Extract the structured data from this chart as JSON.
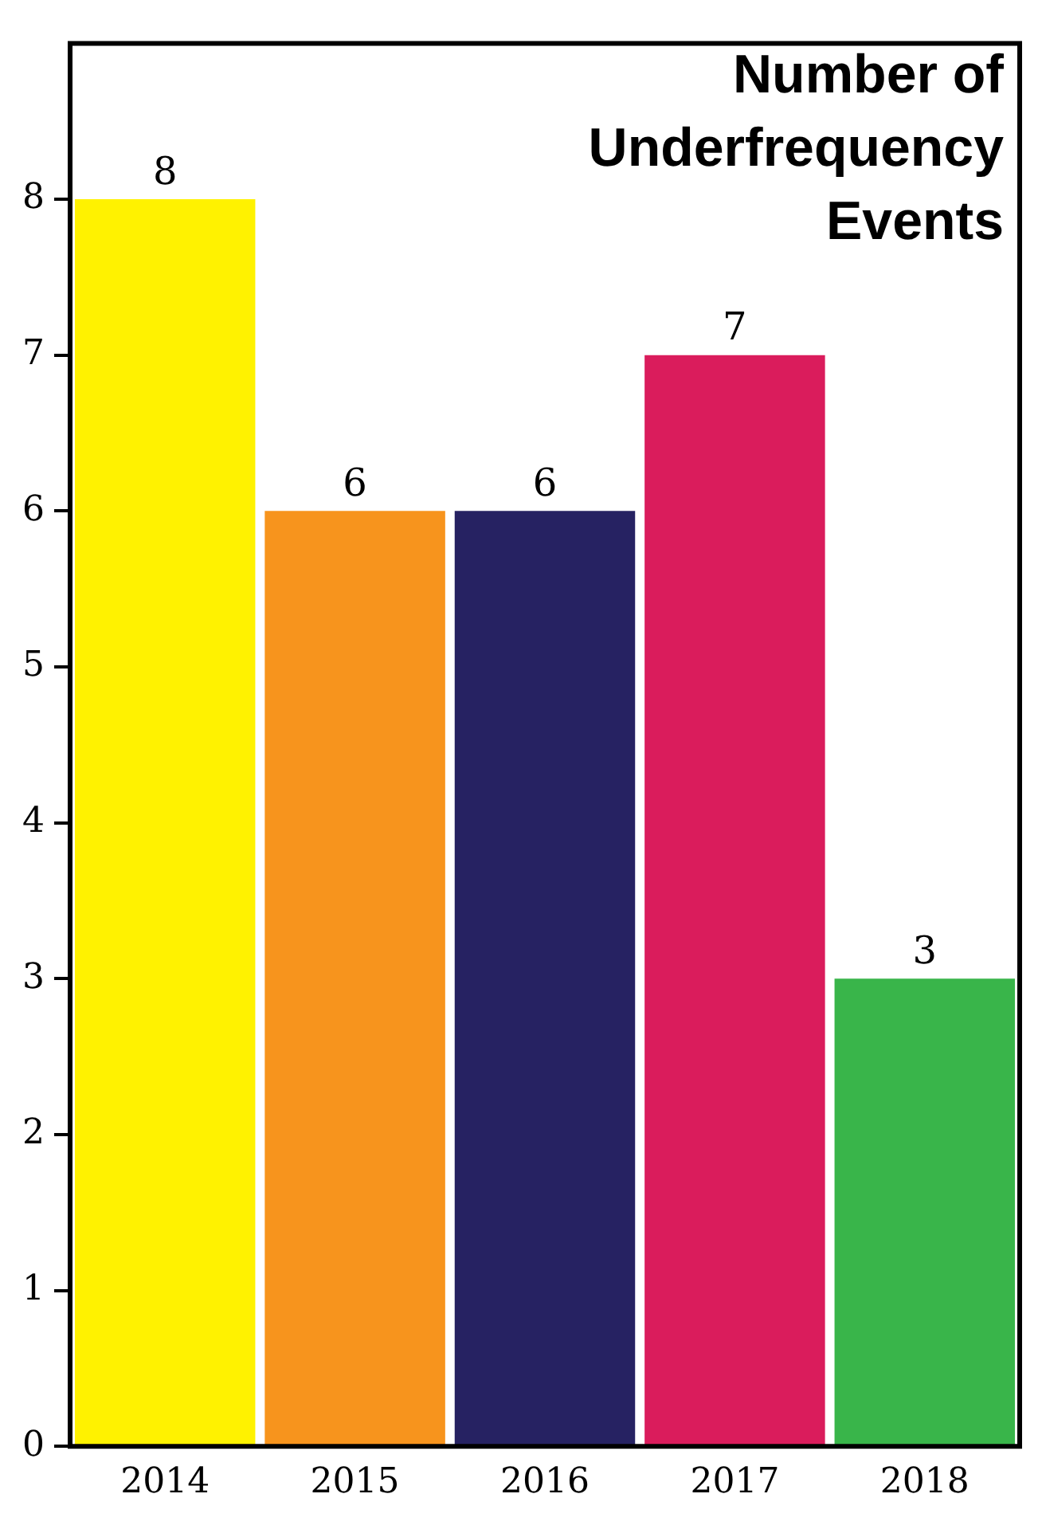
{
  "chart_data": {
    "type": "bar",
    "title": "Number of Underfrequency Events",
    "categories": [
      "2014",
      "2015",
      "2016",
      "2017",
      "2018"
    ],
    "values": [
      8,
      6,
      6,
      7,
      3
    ],
    "colors": [
      "#fff200",
      "#f7941d",
      "#262262",
      "#da1c5c",
      "#39b54a"
    ],
    "ylim": [
      0,
      9
    ],
    "yticks": [
      0,
      1,
      2,
      3,
      4,
      5,
      6,
      7,
      8
    ],
    "data_labels": true,
    "grid": false,
    "legend": false
  }
}
